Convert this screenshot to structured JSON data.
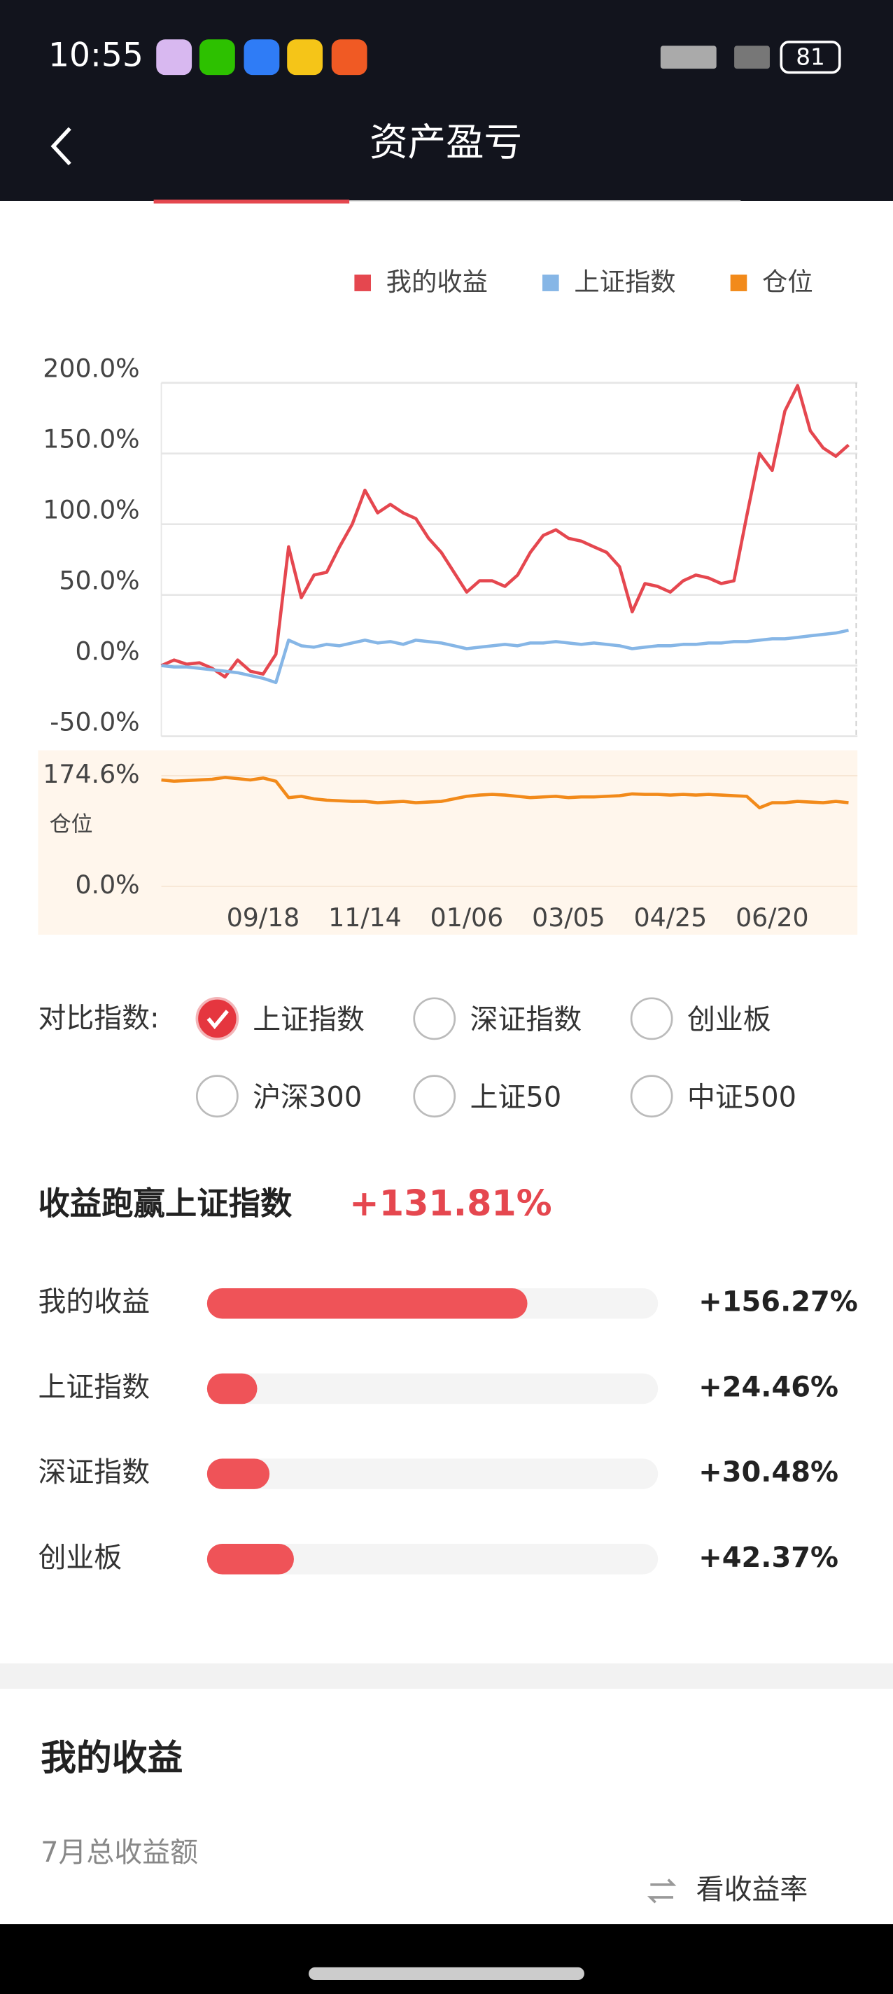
{
  "status_bar": {
    "time": "10:55",
    "battery": "81"
  },
  "nav": {
    "title": "资产盈亏"
  },
  "chart_data": [
    {
      "type": "line",
      "categories": [
        null,
        null,
        null,
        null,
        null,
        null,
        null,
        null,
        "09/18",
        null,
        null,
        null,
        null,
        null,
        null,
        null,
        "11/14",
        null,
        null,
        null,
        null,
        null,
        null,
        null,
        "01/06",
        null,
        null,
        null,
        null,
        null,
        null,
        null,
        "03/05",
        null,
        null,
        null,
        null,
        null,
        null,
        null,
        "04/25",
        null,
        null,
        null,
        null,
        null,
        null,
        null,
        "06/20",
        null,
        null,
        null,
        null,
        null,
        null
      ],
      "series": [
        {
          "name": "我的收益",
          "color": "#e5474f",
          "values": [
            0,
            4,
            1,
            2,
            -2,
            -8,
            4,
            -4,
            -6,
            8,
            84,
            48,
            64,
            66,
            84,
            100,
            124,
            108,
            114,
            108,
            104,
            90,
            80,
            66,
            52,
            60,
            60,
            56,
            64,
            80,
            92,
            96,
            90,
            88,
            84,
            80,
            70,
            38,
            58,
            56,
            52,
            60,
            64,
            62,
            58,
            60,
            106,
            150,
            138,
            180,
            198,
            166,
            154,
            148,
            156
          ]
        },
        {
          "name": "上证指数",
          "color": "#86b6e6",
          "values": [
            0,
            -1,
            -1,
            -2,
            -3,
            -4,
            -5,
            -7,
            -9,
            -12,
            18,
            14,
            13,
            15,
            14,
            16,
            18,
            16,
            17,
            15,
            18,
            17,
            16,
            14,
            12,
            13,
            14,
            15,
            14,
            16,
            16,
            17,
            16,
            15,
            16,
            15,
            14,
            12,
            13,
            14,
            14,
            15,
            15,
            16,
            16,
            17,
            17,
            18,
            19,
            19,
            20,
            21,
            22,
            23,
            25
          ]
        }
      ],
      "ylim": [
        -50,
        200
      ],
      "yticks": [
        {
          "value": -50,
          "label": "-50.0%"
        },
        {
          "value": 0,
          "label": "0.0%"
        },
        {
          "value": 50,
          "label": "50.0%"
        },
        {
          "value": 100,
          "label": "100.0%"
        },
        {
          "value": 150,
          "label": "150.0%"
        },
        {
          "value": 200,
          "label": "200.0%"
        }
      ],
      "grid": true
    },
    {
      "type": "line",
      "ylabel": "仓位",
      "series": [
        {
          "name": "仓位",
          "color": "#f28a1a",
          "values": [
            168,
            166,
            167,
            168,
            169,
            172,
            170,
            168,
            171,
            166,
            140,
            142,
            138,
            136,
            135,
            134,
            134,
            132,
            133,
            134,
            132,
            133,
            134,
            138,
            142,
            144,
            145,
            144,
            142,
            140,
            141,
            142,
            140,
            141,
            141,
            142,
            143,
            146,
            145,
            145,
            144,
            145,
            144,
            145,
            144,
            143,
            142,
            124,
            132,
            132,
            134,
            133,
            132,
            134,
            132
          ]
        }
      ],
      "ylim": [
        0,
        174.6
      ],
      "yticks": [
        {
          "value": 0,
          "label": "0.0%"
        },
        {
          "value": 174.6,
          "label": "174.6%"
        }
      ]
    },
    {
      "type": "hbar",
      "categories": [
        "我的收益",
        "上证指数",
        "深证指数",
        "创业板"
      ],
      "values": [
        156.27,
        24.46,
        30.48,
        42.37
      ],
      "value_labels": [
        "+156.27%",
        "+24.46%",
        "+30.48%",
        "+42.37%"
      ],
      "color": "#ef5358",
      "xlim": [
        0,
        220
      ]
    }
  ],
  "compare": {
    "label": "对比指数:",
    "options": [
      "上证指数",
      "深证指数",
      "创业板",
      "沪深300",
      "上证50",
      "中证500"
    ],
    "selected": 0
  },
  "outperform": {
    "label": "收益跑赢上证指数",
    "value": "+131.81%"
  },
  "section": {
    "title": "我的收益",
    "subtitle": "7月总收益额",
    "toggle": "看收益率"
  }
}
